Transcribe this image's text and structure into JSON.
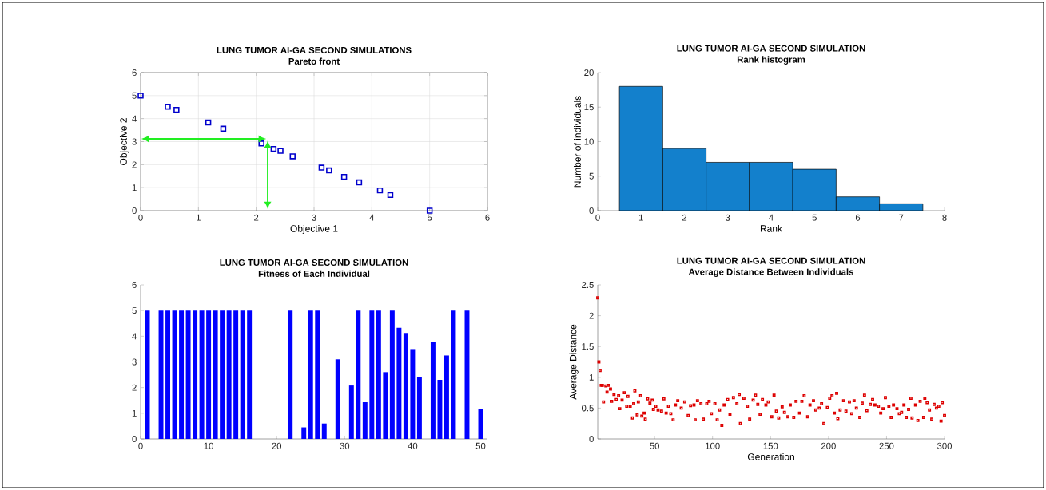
{
  "chart_data": [
    {
      "type": "scatter",
      "title": "LUNG TUMOR AI-GA SECOND SIMULATIONS",
      "subtitle": "Pareto front",
      "xlabel": "Objective 1",
      "ylabel": "Objective 2",
      "xlim": [
        0,
        6
      ],
      "ylim": [
        0,
        6
      ],
      "xticks": [
        0,
        1,
        2,
        3,
        4,
        5,
        6
      ],
      "yticks": [
        0,
        1,
        2,
        3,
        4,
        5,
        6
      ],
      "grid": true,
      "marker": "square",
      "series": [
        {
          "color": "#0000cc",
          "x": [
            0,
            0.47,
            0.62,
            1.17,
            1.43,
            2.09,
            2.3,
            2.42,
            2.63,
            3.13,
            3.26,
            3.52,
            3.78,
            4.14,
            4.32,
            5
          ],
          "values": [
            5,
            4.52,
            4.38,
            3.83,
            3.56,
            2.92,
            2.68,
            2.6,
            2.36,
            1.87,
            1.75,
            1.47,
            1.23,
            0.88,
            0.68,
            0
          ]
        }
      ]
    },
    {
      "type": "histogram",
      "title": "LUNG TUMOR AI-GA SECOND SIMULATION",
      "subtitle": "Rank histogram",
      "xlabel": "Rank",
      "ylabel": "Number of individuals",
      "xlim": [
        0,
        8
      ],
      "ylim": [
        0,
        20
      ],
      "xticks": [
        0,
        1,
        2,
        3,
        4,
        5,
        6,
        7,
        8
      ],
      "yticks": [
        0,
        5,
        10,
        15,
        20
      ],
      "color": "#1380cc",
      "bins": [
        0.5,
        1.5,
        2.5,
        3.5,
        4.5,
        5.5,
        6.5,
        7.5
      ],
      "values": [
        18,
        9,
        7,
        7,
        6,
        2,
        1
      ]
    },
    {
      "type": "bar",
      "title": "LUNG TUMOR AI-GA SECOND SIMULATION",
      "subtitle": "Fitness of Each Individual",
      "xlim": [
        0,
        51
      ],
      "ylim": [
        0,
        6
      ],
      "xticks": [
        0,
        10,
        20,
        30,
        40,
        50
      ],
      "yticks": [
        0,
        1,
        2,
        3,
        4,
        5,
        6
      ],
      "color": "#0000ff",
      "x": [
        1,
        2,
        3,
        4,
        5,
        6,
        7,
        8,
        9,
        10,
        11,
        12,
        13,
        14,
        15,
        16,
        17,
        18,
        19,
        20,
        21,
        22,
        23,
        24,
        25,
        26,
        27,
        28,
        29,
        30,
        31,
        32,
        33,
        34,
        35,
        36,
        37,
        38,
        39,
        40,
        41,
        42,
        43,
        44,
        45,
        46,
        47,
        48,
        49,
        50
      ],
      "values": [
        5,
        0,
        5,
        5,
        5,
        5,
        5,
        5,
        5,
        5,
        5,
        5,
        5,
        5,
        5,
        5,
        0,
        0,
        0,
        0,
        0,
        5,
        0,
        0.45,
        5,
        5,
        0.6,
        0,
        3.1,
        0,
        2.08,
        5,
        1.43,
        5,
        5,
        2.6,
        5,
        4.33,
        4.13,
        3.5,
        2.4,
        0,
        3.78,
        2.3,
        3.25,
        5,
        0,
        5,
        0,
        1.15
      ]
    },
    {
      "type": "scatter",
      "title": "LUNG TUMOR AI-GA SECOND SIMULATION",
      "subtitle": "Average Distance Between Individuals",
      "xlabel": "Generation",
      "ylabel": "Average Distance",
      "xlim": [
        1,
        300
      ],
      "ylim": [
        0,
        2.5
      ],
      "xticks": [
        50,
        100,
        150,
        200,
        250,
        300
      ],
      "yticks": [
        0,
        0.5,
        1,
        1.5,
        2,
        2.5
      ],
      "marker": "square",
      "color": "#dd0000",
      "x": [
        1,
        2,
        3,
        4,
        5,
        6,
        8,
        9,
        10,
        12,
        13,
        15,
        17,
        19,
        20,
        22,
        24,
        26,
        27,
        29,
        31,
        32,
        33,
        35,
        36,
        38,
        39,
        41,
        42,
        44,
        46,
        48,
        49,
        51,
        53,
        56,
        58,
        60,
        62,
        64,
        66,
        68,
        70,
        73,
        76,
        79,
        81,
        84,
        85,
        87,
        90,
        92,
        95,
        97,
        99,
        102,
        104,
        106,
        108,
        110,
        113,
        115,
        118,
        121,
        123,
        124,
        127,
        130,
        132,
        135,
        137,
        139,
        141,
        143,
        146,
        148,
        151,
        153,
        155,
        157,
        160,
        162,
        165,
        167,
        170,
        172,
        175,
        177,
        179,
        182,
        184,
        187,
        189,
        192,
        194,
        196,
        199,
        201,
        203,
        205,
        207,
        208,
        210,
        213,
        215,
        218,
        220,
        222,
        224,
        227,
        229,
        231,
        233,
        236,
        238,
        240,
        243,
        245,
        247,
        249,
        252,
        254,
        256,
        259,
        261,
        263,
        265,
        267,
        269,
        271,
        272,
        275,
        277,
        279,
        282,
        283,
        285,
        287,
        289,
        291,
        293,
        295,
        297,
        298,
        300
      ],
      "values": [
        2.29,
        1.25,
        1.11,
        0.87,
        0.87,
        0.6,
        0.86,
        0.76,
        0.87,
        0.81,
        0.61,
        0.72,
        0.64,
        0.7,
        0.49,
        0.63,
        0.75,
        0.53,
        0.69,
        0.53,
        0.34,
        0.57,
        0.78,
        0.39,
        0.6,
        0.7,
        0.37,
        0.42,
        0.32,
        0.65,
        0.58,
        0.63,
        0.48,
        0.53,
        0.47,
        0.45,
        0.65,
        0.42,
        0.53,
        0.41,
        0.31,
        0.55,
        0.62,
        0.5,
        0.6,
        0.38,
        0.54,
        0.55,
        0.31,
        0.62,
        0.57,
        0.32,
        0.57,
        0.61,
        0.41,
        0.57,
        0.31,
        0.47,
        0.22,
        0.55,
        0.64,
        0.4,
        0.67,
        0.57,
        0.72,
        0.25,
        0.66,
        0.53,
        0.32,
        0.63,
        0.71,
        0.56,
        0.4,
        0.64,
        0.55,
        0.6,
        0.36,
        0.71,
        0.45,
        0.34,
        0.52,
        0.43,
        0.36,
        0.55,
        0.35,
        0.61,
        0.42,
        0.61,
        0.7,
        0.36,
        0.55,
        0.62,
        0.47,
        0.5,
        0.57,
        0.25,
        0.51,
        0.66,
        0.7,
        0.42,
        0.74,
        0.33,
        0.47,
        0.62,
        0.45,
        0.6,
        0.41,
        0.62,
        0.5,
        0.35,
        0.58,
        0.71,
        0.46,
        0.56,
        0.64,
        0.55,
        0.53,
        0.42,
        0.49,
        0.67,
        0.53,
        0.35,
        0.55,
        0.49,
        0.41,
        0.43,
        0.55,
        0.35,
        0.48,
        0.66,
        0.34,
        0.55,
        0.3,
        0.61,
        0.35,
        0.66,
        0.59,
        0.47,
        0.32,
        0.56,
        0.5,
        0.53,
        0.29,
        0.59,
        0.38
      ]
    }
  ]
}
